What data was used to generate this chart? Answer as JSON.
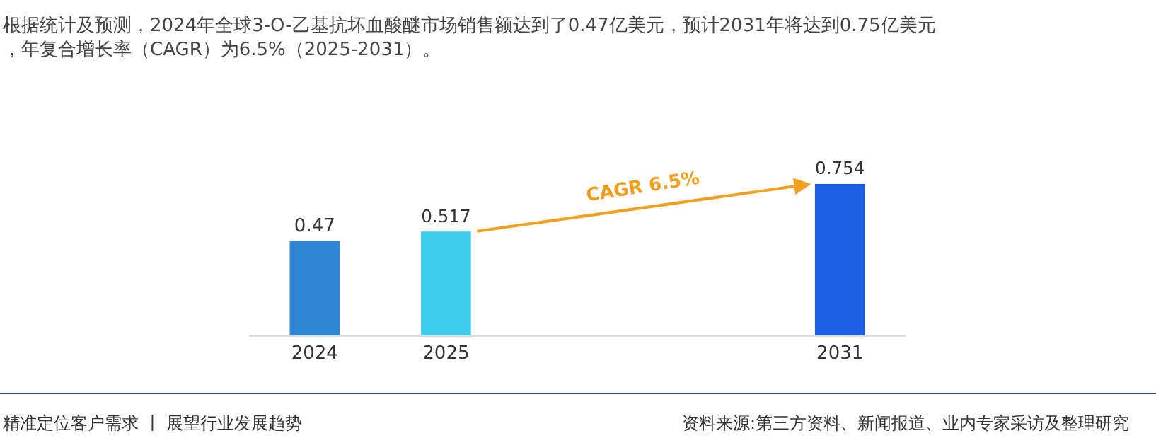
{
  "chart_data": {
    "type": "bar",
    "title": "根据统计及预测，2024年全球3-O-乙基抗坏血酸醚市场销售额达到了0.47亿美元，预计2031年将达到0.75亿美元，年复合增长率（CAGR）为6.5%（2025-2031）。",
    "categories": [
      "2024",
      "2025",
      null,
      null,
      "2031"
    ],
    "values": [
      0.47,
      0.517,
      null,
      null,
      0.754
    ],
    "colors": [
      "#2f84d4",
      "#3ecbea",
      "#3ecbea",
      "#3ecbea",
      "#1b5fe0"
    ],
    "data_labels": true,
    "annotations": [
      "CAGR 6.5%",
      "精准定位客户需求 丨 展望行业发展趋势",
      "资料来源:第三方资料、新闻报道、业内专家采访及整理研究"
    ]
  }
}
